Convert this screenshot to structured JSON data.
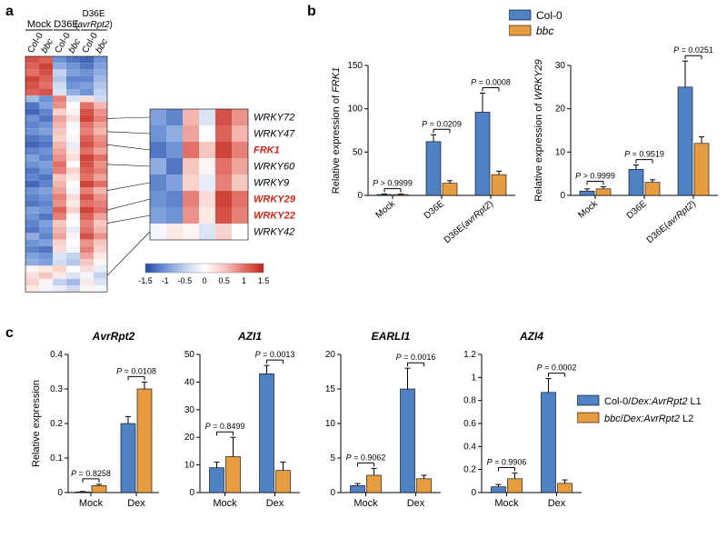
{
  "legend_top": {
    "col0": "Col-0",
    "bbc": "bbc",
    "col0_color": "#4f81c5",
    "bbc_color": "#e69c3f"
  },
  "panel_a": {
    "label": "a",
    "top_labels": [
      "Mock",
      "D36E",
      "D36E (avrRpt2)"
    ],
    "col_labels": [
      "Col-0",
      "bbc",
      "Col-0",
      "bbc",
      "Col-0",
      "bbc"
    ],
    "heatmap_rows": 36,
    "heatmap_cols": 6,
    "small_rows": 8,
    "gene_labels": [
      {
        "text": "WRKY72",
        "italic": true,
        "red": false
      },
      {
        "text": "WRKY47",
        "italic": true,
        "red": false
      },
      {
        "text": "FRK1",
        "italic": true,
        "red": true
      },
      {
        "text": "WRKY60",
        "italic": true,
        "red": false
      },
      {
        "text": "WRKY9",
        "italic": true,
        "red": false
      },
      {
        "text": "WRKY29",
        "italic": true,
        "red": true
      },
      {
        "text": "WRKY22",
        "italic": true,
        "red": true
      },
      {
        "text": "WRKY42",
        "italic": true,
        "red": false
      }
    ],
    "scale_ticks": [
      -1.5,
      -1,
      -0.5,
      0,
      0.5,
      1,
      1.5
    ],
    "grad_colors": [
      "#2648a4",
      "#6f94d6",
      "#c3d2ee",
      "#ffffff",
      "#f6c7c1",
      "#e37066",
      "#c0261b"
    ],
    "main_heat_values": [
      [
        1.2,
        1.1,
        -1.0,
        -1.2,
        -1.3,
        -1.0
      ],
      [
        1.1,
        1.3,
        -0.8,
        -1.0,
        -1.2,
        -0.9
      ],
      [
        1.0,
        1.2,
        -0.5,
        -0.9,
        -1.0,
        -0.8
      ],
      [
        1.3,
        1.1,
        -0.6,
        -1.1,
        -1.1,
        -0.7
      ],
      [
        1.2,
        1.0,
        -0.4,
        -1.0,
        -0.9,
        -0.6
      ],
      [
        1.1,
        1.2,
        -0.3,
        -0.8,
        -1.0,
        -0.5
      ],
      [
        -0.7,
        -1.0,
        0.9,
        -0.3,
        0.3,
        -0.4
      ],
      [
        -1.2,
        -0.9,
        0.8,
        0.0,
        1.0,
        0.6
      ],
      [
        -1.3,
        -1.1,
        0.4,
        0.1,
        1.2,
        0.8
      ],
      [
        -1.0,
        -1.2,
        0.7,
        0.3,
        1.3,
        0.9
      ],
      [
        -1.1,
        -1.0,
        0.6,
        -0.1,
        1.0,
        0.7
      ],
      [
        -1.0,
        -0.9,
        0.5,
        0.0,
        0.9,
        0.6
      ],
      [
        -1.2,
        -1.1,
        0.4,
        0.1,
        1.1,
        0.8
      ],
      [
        -1.3,
        -1.2,
        0.6,
        -0.2,
        1.2,
        0.9
      ],
      [
        -1.1,
        -1.0,
        0.7,
        0.2,
        1.0,
        0.7
      ],
      [
        -0.9,
        -1.1,
        0.8,
        0.3,
        1.3,
        1.0
      ],
      [
        -1.0,
        -0.9,
        1.0,
        0.0,
        1.2,
        0.8
      ],
      [
        -1.2,
        -1.0,
        0.9,
        0.4,
        1.1,
        0.9
      ],
      [
        -1.1,
        -1.2,
        0.5,
        0.2,
        1.0,
        0.7
      ],
      [
        -1.3,
        -1.1,
        0.6,
        0.0,
        1.3,
        1.0
      ],
      [
        -1.0,
        -0.9,
        0.7,
        -0.1,
        0.9,
        0.6
      ],
      [
        -1.1,
        -1.0,
        0.9,
        0.3,
        1.2,
        0.8
      ],
      [
        -1.2,
        -1.1,
        0.8,
        0.2,
        1.0,
        0.9
      ],
      [
        -0.9,
        -1.0,
        1.1,
        0.4,
        1.3,
        1.0
      ],
      [
        -1.0,
        -1.2,
        0.9,
        0.1,
        1.1,
        0.7
      ],
      [
        -1.1,
        -0.9,
        0.5,
        0.0,
        0.9,
        0.5
      ],
      [
        -1.2,
        -1.0,
        0.6,
        -0.2,
        1.0,
        0.6
      ],
      [
        -0.8,
        -1.1,
        0.7,
        0.1,
        1.2,
        0.8
      ],
      [
        -1.0,
        -0.9,
        0.4,
        0.0,
        0.8,
        0.5
      ],
      [
        -1.1,
        -1.2,
        0.3,
        -0.1,
        0.9,
        0.4
      ],
      [
        -0.9,
        -1.0,
        -0.3,
        -0.5,
        0.7,
        0.2
      ],
      [
        -0.8,
        -0.9,
        -0.4,
        -0.6,
        0.5,
        0.1
      ],
      [
        0.1,
        0.2,
        0.4,
        0.0,
        0.3,
        -0.2
      ],
      [
        0.3,
        0.5,
        0.2,
        -0.3,
        -0.1,
        -0.5
      ],
      [
        0.4,
        0.1,
        -0.5,
        -0.7,
        0.2,
        -0.3
      ],
      [
        0.2,
        -0.1,
        -0.2,
        -0.4,
        0.1,
        -0.1
      ]
    ],
    "detail_values": [
      [
        -0.9,
        -1.1,
        0.6,
        -0.3,
        1.2,
        0.8
      ],
      [
        -1.0,
        -0.8,
        0.7,
        0.0,
        1.1,
        0.6
      ],
      [
        -1.2,
        -1.0,
        1.0,
        0.5,
        1.3,
        0.9
      ],
      [
        -0.8,
        -1.2,
        0.5,
        0.1,
        1.0,
        0.7
      ],
      [
        -1.1,
        -0.9,
        0.4,
        -0.2,
        0.9,
        0.5
      ],
      [
        -1.0,
        -1.1,
        0.9,
        0.3,
        1.3,
        1.0
      ],
      [
        -0.9,
        -1.0,
        0.8,
        0.2,
        1.2,
        0.9
      ],
      [
        -0.1,
        0.2,
        0.1,
        -0.3,
        0.4,
        0.0
      ]
    ],
    "connectors": [
      {
        "big_row": 9,
        "small_row": 0
      },
      {
        "big_row": 11,
        "small_row": 1
      },
      {
        "big_row": 13,
        "small_row": 2
      },
      {
        "big_row": 16,
        "small_row": 3
      },
      {
        "big_row": 20,
        "small_row": 4
      },
      {
        "big_row": 23,
        "small_row": 5
      },
      {
        "big_row": 25,
        "small_row": 6
      },
      {
        "big_row": 33,
        "small_row": 7
      }
    ]
  },
  "panel_b": {
    "label": "b",
    "charts": [
      {
        "ylabel": "Relative expression of FRK1",
        "ylabel_italic_part": "FRK1",
        "ylim": [
          0,
          150
        ],
        "yticks": [
          0,
          50,
          100,
          150
        ],
        "cats": [
          "Mock",
          "D36E",
          "D36E(avrRpt2)"
        ],
        "cats_italic": [
          false,
          false,
          "avrRpt2"
        ],
        "col0": [
          1,
          62,
          96
        ],
        "col0_err": [
          0.5,
          8,
          22
        ],
        "bbc": [
          1,
          14,
          24
        ],
        "bbc_err": [
          0.5,
          3,
          4
        ],
        "pvals": [
          "P > 0.9999",
          "P = 0.0209",
          "P = 0.0008"
        ]
      },
      {
        "ylabel": "Relative expression of WRKY29",
        "ylabel_italic_part": "WRKY29",
        "ylim": [
          0,
          30
        ],
        "yticks": [
          0,
          10,
          20,
          30
        ],
        "cats": [
          "Mock",
          "D36E",
          "D36E(avrRpt2)"
        ],
        "cats_italic": [
          false,
          false,
          "avrRpt2"
        ],
        "col0": [
          1,
          6,
          25
        ],
        "col0_err": [
          0.5,
          1,
          6
        ],
        "bbc": [
          1.5,
          3,
          12
        ],
        "bbc_err": [
          0.5,
          0.6,
          1.5
        ],
        "pvals": [
          "P > 0.9999",
          "P = 0.9519",
          "P = 0.0251"
        ]
      }
    ]
  },
  "panel_c": {
    "label": "c",
    "legend": {
      "col0": "Col-0/Dex:AvrRpt2 L1",
      "bbc": "bbc/Dex:AvrRpt2 L2",
      "col0_italic": "Dex:AvrRpt2",
      "bbc_italic1": "bbc",
      "bbc_italic2": "Dex:AvrRpt2"
    },
    "charts": [
      {
        "title": "AvrRpt2",
        "ylim": [
          0,
          0.4
        ],
        "yticks": [
          0,
          0.1,
          0.2,
          0.3,
          0.4
        ],
        "col0": [
          0.002,
          0.2
        ],
        "col0_err": [
          0.001,
          0.02
        ],
        "bbc": [
          0.02,
          0.3
        ],
        "bbc_err": [
          0.004,
          0.02
        ],
        "pvals": [
          "P = 0.8258",
          "P = 0.0108"
        ]
      },
      {
        "title": "AZI1",
        "ylim": [
          0,
          50
        ],
        "yticks": [
          0,
          10,
          20,
          30,
          40,
          50
        ],
        "col0": [
          9,
          43
        ],
        "col0_err": [
          2,
          3
        ],
        "bbc": [
          13,
          8
        ],
        "bbc_err": [
          7,
          3
        ],
        "pvals": [
          "P = 0.8499",
          "P = 0.0013"
        ]
      },
      {
        "title": "EARLI1",
        "ylim": [
          0,
          20
        ],
        "yticks": [
          0,
          5,
          10,
          15,
          20
        ],
        "col0": [
          1,
          15
        ],
        "col0_err": [
          0.3,
          3
        ],
        "bbc": [
          2.5,
          2
        ],
        "bbc_err": [
          1,
          0.5
        ],
        "pvals": [
          "P = 0.9062",
          "P = 0.0016"
        ]
      },
      {
        "title": "AZI4",
        "ylim": [
          0,
          1.2
        ],
        "yticks": [
          0,
          0.2,
          0.4,
          0.6,
          0.8,
          1.0,
          1.2
        ],
        "col0": [
          0.05,
          0.87
        ],
        "col0_err": [
          0.02,
          0.12
        ],
        "bbc": [
          0.12,
          0.08
        ],
        "bbc_err": [
          0.05,
          0.03
        ],
        "pvals": [
          "P = 0.9906",
          "P = 0.0002"
        ]
      }
    ],
    "cats": [
      "Mock",
      "Dex"
    ],
    "ylabel": "Relative expression"
  },
  "style": {
    "axis_color": "#000000",
    "error_w": 3,
    "bar_font": 10,
    "small_font": 9,
    "pval_font": 9
  }
}
